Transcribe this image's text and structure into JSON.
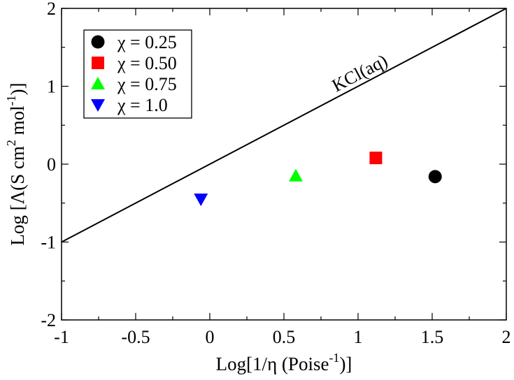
{
  "chart_data": {
    "type": "scatter",
    "title": "",
    "xlabel": "Log[1/η (Poise",
    "xlabel_sup": "-1",
    "xlabel_end": ")]",
    "ylabel": "Log [Λ(S cm",
    "ylabel_sup1": "2",
    "ylabel_mid": " mol",
    "ylabel_sup2": "-1",
    "ylabel_end": ")]",
    "xlim": [
      -1,
      2
    ],
    "ylim": [
      -2,
      2
    ],
    "xticks": [
      -1,
      -0.5,
      0,
      0.5,
      1,
      1.5,
      2
    ],
    "xtick_labels": [
      "-1",
      "-0.5",
      "0",
      "0.5",
      "1",
      "1.5",
      "2"
    ],
    "yticks": [
      -2,
      -1,
      0,
      1,
      2
    ],
    "ytick_labels": [
      "-2",
      "-1",
      "0",
      "1",
      "2"
    ],
    "grid": false,
    "legend_position": "top-left",
    "series": [
      {
        "name": "χ = 0.25",
        "marker": "circle",
        "color": "#000000",
        "x": [
          1.52
        ],
        "y": [
          -0.16
        ]
      },
      {
        "name": "χ = 0.50",
        "marker": "square",
        "color": "#ff0000",
        "x": [
          1.12
        ],
        "y": [
          0.08
        ]
      },
      {
        "name": "χ = 0.75",
        "marker": "triangle-up",
        "color": "#00ff00",
        "x": [
          0.58
        ],
        "y": [
          -0.15
        ]
      },
      {
        "name": "χ = 1.0",
        "marker": "triangle-down",
        "color": "#0000ff",
        "x": [
          -0.06
        ],
        "y": [
          -0.45
        ]
      }
    ],
    "reference_line": {
      "name": "KCl(aq)",
      "x": [
        -1,
        2
      ],
      "y": [
        -1,
        2
      ],
      "color": "#000000"
    }
  }
}
